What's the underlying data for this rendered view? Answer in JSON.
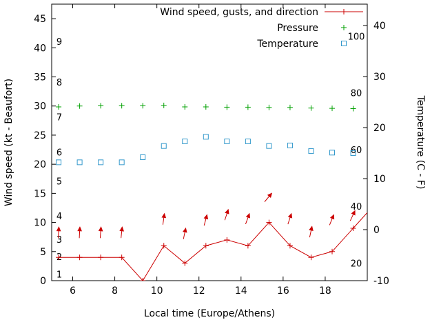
{
  "chart_data": {
    "type": "line",
    "title": "",
    "xlabel": "Local time (Europe/Athens)",
    "ylabel_left": "Wind speed (kt - Beaufort)",
    "ylabel_right": "Temperature (C - F)",
    "xlim": [
      5,
      20
    ],
    "x_ticks": [
      6,
      8,
      10,
      12,
      14,
      16,
      18
    ],
    "ylim_left": [
      0,
      47.5
    ],
    "y_ticks_left": [
      0,
      5,
      10,
      15,
      20,
      25,
      30,
      35,
      40,
      45
    ],
    "ylim_right": [
      -10,
      44.2
    ],
    "y_ticks_right": [
      -10,
      0,
      10,
      20,
      30,
      40
    ],
    "grid": false,
    "legend_position": "top-right-inside",
    "axis_color": "#000000",
    "x": [
      5.33,
      6.33,
      7.33,
      8.33,
      9.33,
      10.33,
      11.33,
      12.33,
      13.33,
      14.33,
      15.33,
      16.33,
      17.33,
      18.33,
      19.33,
      20.33
    ],
    "series": [
      {
        "name": "Wind speed, gusts, and direction",
        "color": "#cc0000",
        "axis": "left",
        "style": "line+plus",
        "values": [
          4,
          4,
          4,
          4,
          0,
          6,
          3,
          6,
          7,
          6,
          10,
          6,
          4,
          5,
          9,
          13
        ]
      },
      {
        "name": "Pressure",
        "color": "#00a000",
        "axis": "left",
        "style": "plus",
        "values": [
          29.85,
          30.0,
          30.05,
          30.05,
          30.05,
          30.1,
          29.85,
          29.85,
          29.8,
          29.8,
          29.75,
          29.75,
          29.65,
          29.6,
          29.55,
          null
        ]
      },
      {
        "name": "Temperature",
        "color": "#3399cc",
        "axis": "right",
        "style": "square",
        "values": [
          13.2,
          13.2,
          13.2,
          13.2,
          14.2,
          16.4,
          17.3,
          18.2,
          17.3,
          17.3,
          16.4,
          16.5,
          15.4,
          15.1,
          15.0,
          null
        ]
      }
    ],
    "wind_arrows": [
      {
        "x": 5.33,
        "tip_kt": 9.2,
        "dir_deg": 3
      },
      {
        "x": 6.33,
        "tip_kt": 9.2,
        "dir_deg": 3
      },
      {
        "x": 7.33,
        "tip_kt": 9.2,
        "dir_deg": 4
      },
      {
        "x": 8.33,
        "tip_kt": 9.2,
        "dir_deg": 6
      },
      {
        "x": 10.33,
        "tip_kt": 11.5,
        "dir_deg": 8
      },
      {
        "x": 11.33,
        "tip_kt": 9.0,
        "dir_deg": 12
      },
      {
        "x": 12.33,
        "tip_kt": 11.3,
        "dir_deg": 15
      },
      {
        "x": 13.33,
        "tip_kt": 12.2,
        "dir_deg": 18
      },
      {
        "x": 14.33,
        "tip_kt": 11.5,
        "dir_deg": 20
      },
      {
        "x": 15.33,
        "tip_kt": 15.0,
        "dir_deg": 40
      },
      {
        "x": 16.33,
        "tip_kt": 11.5,
        "dir_deg": 18
      },
      {
        "x": 17.33,
        "tip_kt": 9.3,
        "dir_deg": 12
      },
      {
        "x": 18.33,
        "tip_kt": 11.3,
        "dir_deg": 22
      },
      {
        "x": 19.33,
        "tip_kt": 12.0,
        "dir_deg": 25
      }
    ],
    "beaufort_scale_labels": [
      {
        "label": "1",
        "kt": 1
      },
      {
        "label": "2",
        "kt": 4
      },
      {
        "label": "3",
        "kt": 7
      },
      {
        "label": "4",
        "kt": 11
      },
      {
        "label": "5",
        "kt": 17
      },
      {
        "label": "6",
        "kt": 22
      },
      {
        "label": "7",
        "kt": 28
      },
      {
        "label": "8",
        "kt": 34
      },
      {
        "label": "9",
        "kt": 41
      }
    ],
    "fahrenheit_scale_labels": [
      {
        "label": "20",
        "f": 20
      },
      {
        "label": "40",
        "f": 40
      },
      {
        "label": "60",
        "f": 60
      },
      {
        "label": "80",
        "f": 80
      },
      {
        "label": "100",
        "f": 100
      }
    ]
  }
}
